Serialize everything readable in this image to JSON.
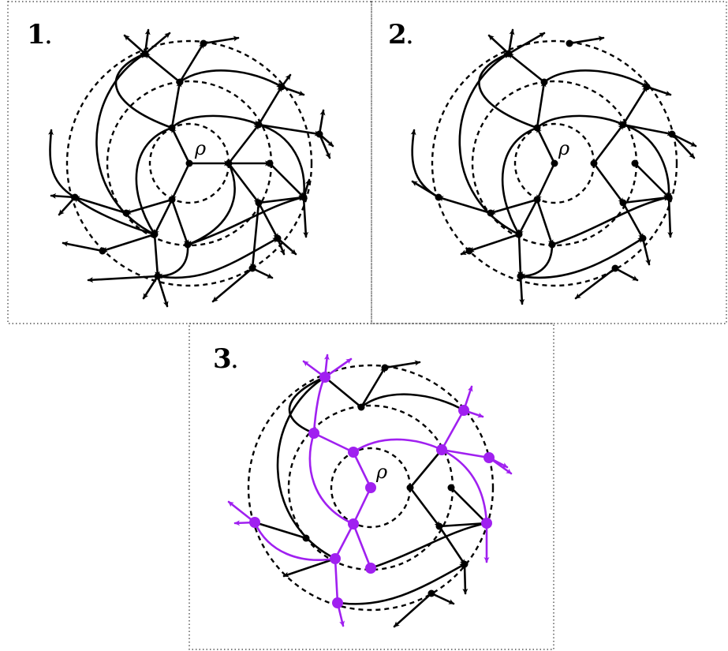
{
  "colors": {
    "base": "#000000",
    "highlight": "#a020f0",
    "frame": "#333333"
  },
  "root_symbol": "ρ",
  "panels": [
    {
      "number": "1",
      "punct": "."
    },
    {
      "number": "2",
      "punct": "."
    },
    {
      "number": "3",
      "punct": "."
    }
  ]
}
